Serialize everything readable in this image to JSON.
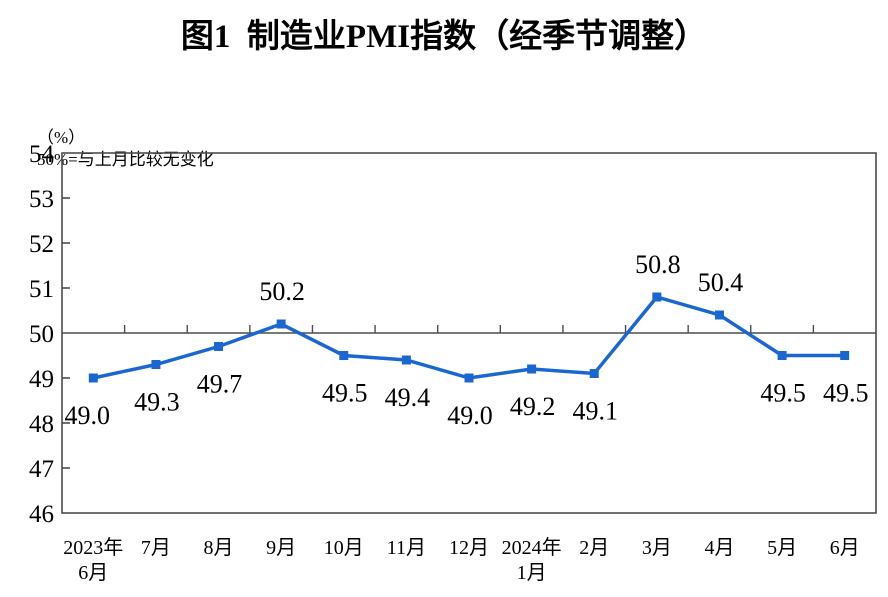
{
  "page": {
    "title": "图1  制造业PMI指数（经季节调整）",
    "unit_label": "（%）",
    "reference_note": "50%=与上月比较无变化"
  },
  "chart_data": {
    "type": "line",
    "title": "图1 制造业PMI指数（经季节调整）",
    "subtitle_note": "50%=与上月比较无变化",
    "unit": "%",
    "categories": [
      "2023年\n6月",
      "7月",
      "8月",
      "9月",
      "10月",
      "11月",
      "12月",
      "2024年\n1月",
      "2月",
      "3月",
      "4月",
      "5月",
      "6月"
    ],
    "values": [
      49.0,
      49.3,
      49.7,
      50.2,
      49.5,
      49.4,
      49.0,
      49.2,
      49.1,
      50.8,
      50.4,
      49.5,
      49.5
    ],
    "data_labels": [
      "49.0",
      "49.3",
      "49.7",
      "50.2",
      "49.5",
      "49.4",
      "49.0",
      "49.2",
      "49.1",
      "50.8",
      "50.4",
      "49.5",
      "49.5"
    ],
    "label_positions": [
      "below",
      "below",
      "below",
      "above",
      "below",
      "below",
      "below",
      "below",
      "below",
      "above",
      "above",
      "below",
      "below"
    ],
    "ylim": [
      46,
      54
    ],
    "ytick_step": 1,
    "yticks": [
      46,
      47,
      48,
      49,
      50,
      51,
      52,
      53,
      54
    ],
    "reference_line_y": 50,
    "grid": false,
    "legend": "none",
    "line_color": "#1b67d2",
    "marker": "square",
    "axis_color": "#4d4d4d",
    "text_color": "#000000"
  }
}
